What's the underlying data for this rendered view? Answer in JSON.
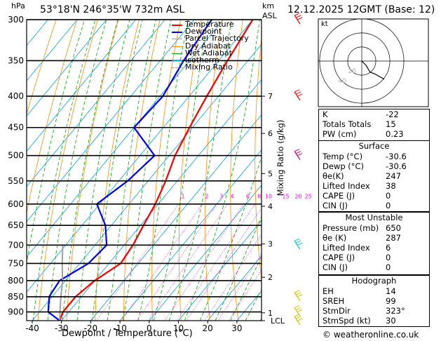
{
  "header": {
    "location": "53°18'N  246°35'W  732m  ASL",
    "datetime": "12.12.2025  12GMT  (Base: 12)",
    "hpa_label": "hPa",
    "km_label": "km",
    "asl_label": "ASL"
  },
  "chart_data": {
    "type": "skewt",
    "xlabel": "Dewpoint / Temperature (°C)",
    "ylabel_right": "Mixing Ratio (g/kg)",
    "x_ticks": [
      -40,
      -30,
      -20,
      -10,
      0,
      10,
      20,
      30
    ],
    "xlim": [
      -40,
      40
    ],
    "pressure_ticks": [
      300,
      350,
      400,
      450,
      500,
      550,
      600,
      650,
      700,
      750,
      800,
      850,
      900
    ],
    "pressure_range": [
      300,
      930
    ],
    "km_ticks": [
      {
        "label": "7",
        "p": 400
      },
      {
        "label": "6",
        "p": 460
      },
      {
        "label": "5",
        "p": 535
      },
      {
        "label": "4",
        "p": 605
      },
      {
        "label": "3",
        "p": 697
      },
      {
        "label": "2",
        "p": 790
      },
      {
        "label": "1",
        "p": 903
      },
      {
        "label": "LCL",
        "p": 930
      }
    ],
    "mixing_ratio_labels": [
      "1",
      "2",
      "3",
      "4",
      "6",
      "8",
      "10",
      "15",
      "20",
      "25"
    ],
    "mixing_ratio_values": [
      1,
      2,
      3,
      4,
      6,
      8,
      10,
      15,
      20,
      25
    ],
    "legend": [
      {
        "name": "Temperature",
        "color": "#ff0000"
      },
      {
        "name": "Dewpoint",
        "color": "#0000ff"
      },
      {
        "name": "Parcel Trajectory",
        "color": "#a0a0a0"
      },
      {
        "name": "Dry Adiabat",
        "color": "#ff8c00"
      },
      {
        "name": "Wet Adiabat",
        "color": "#00aa00"
      },
      {
        "name": "Isotherm",
        "color": "#00a0ff"
      },
      {
        "name": "Mixing Ratio",
        "color": "#ff00ff"
      }
    ],
    "series": [
      {
        "name": "Temperature",
        "points": [
          [
            300,
            -50
          ],
          [
            350,
            -47
          ],
          [
            400,
            -44
          ],
          [
            450,
            -41
          ],
          [
            500,
            -38
          ],
          [
            550,
            -34
          ],
          [
            600,
            -31
          ],
          [
            650,
            -29
          ],
          [
            700,
            -27
          ],
          [
            750,
            -26
          ],
          [
            800,
            -30
          ],
          [
            850,
            -32
          ],
          [
            900,
            -32
          ],
          [
            930,
            -30.6
          ]
        ]
      },
      {
        "name": "Dewpoint",
        "points": [
          [
            300,
            -64
          ],
          [
            350,
            -62
          ],
          [
            400,
            -59
          ],
          [
            450,
            -60
          ],
          [
            500,
            -45
          ],
          [
            550,
            -47
          ],
          [
            600,
            -51
          ],
          [
            650,
            -42
          ],
          [
            700,
            -36
          ],
          [
            750,
            -37
          ],
          [
            800,
            -42
          ],
          [
            850,
            -41
          ],
          [
            900,
            -37
          ],
          [
            930,
            -30.6
          ]
        ]
      },
      {
        "name": "Parcel Trajectory",
        "points": [
          [
            930,
            -30.6
          ],
          [
            900,
            -33
          ],
          [
            850,
            -37
          ],
          [
            800,
            -41
          ],
          [
            750,
            -46
          ],
          [
            700,
            -51
          ]
        ]
      }
    ]
  },
  "hodograph": {
    "unit_label": "kt",
    "ring_labels": [
      "20",
      "40"
    ],
    "points": [
      [
        0,
        0
      ],
      [
        3,
        -3
      ],
      [
        6,
        -8
      ],
      [
        9,
        -9
      ],
      [
        16,
        -13
      ]
    ]
  },
  "winds": [
    {
      "p": 300,
      "color": "#ff0000"
    },
    {
      "p": 400,
      "color": "#ff0000"
    },
    {
      "p": 500,
      "color": "#cc0066"
    },
    {
      "p": 700,
      "color": "#00cccc"
    },
    {
      "p": 850,
      "color": "#cccc00"
    },
    {
      "p": 900,
      "color": "#cccc00"
    },
    {
      "p": 930,
      "color": "#cccc00"
    }
  ],
  "indices": [
    {
      "label": "K",
      "value": "-22"
    },
    {
      "label": "Totals Totals",
      "value": "15"
    },
    {
      "label": "PW (cm)",
      "value": "0.23"
    }
  ],
  "surface": {
    "title": "Surface",
    "rows": [
      {
        "label": "Temp (°C)",
        "value": "-30.6"
      },
      {
        "label": "Dewp (°C)",
        "value": "-30.6"
      },
      {
        "label": "θe(K)",
        "value": "247"
      },
      {
        "label": "Lifted Index",
        "value": "38"
      },
      {
        "label": "CAPE (J)",
        "value": "0"
      },
      {
        "label": "CIN (J)",
        "value": "0"
      }
    ]
  },
  "most_unstable": {
    "title": "Most Unstable",
    "rows": [
      {
        "label": "Pressure (mb)",
        "value": "650"
      },
      {
        "label": "θe (K)",
        "value": "287"
      },
      {
        "label": "Lifted Index",
        "value": "6"
      },
      {
        "label": "CAPE (J)",
        "value": "0"
      },
      {
        "label": "CIN (J)",
        "value": "0"
      }
    ]
  },
  "hodograph_table": {
    "title": "Hodograph",
    "rows": [
      {
        "label": "EH",
        "value": "14"
      },
      {
        "label": "SREH",
        "value": "99"
      },
      {
        "label": "StmDir",
        "value": "323°"
      },
      {
        "label": "StmSpd (kt)",
        "value": "30"
      }
    ]
  },
  "footer": {
    "copyright": "© weatheronline.co.uk"
  },
  "colors": {
    "temperature": "#ff0000",
    "dewpoint": "#0000ff",
    "parcel": "#a0a0a0",
    "dry": "#ff8c00",
    "wet": "#00aa00",
    "isotherm": "#00a0ff",
    "mixing": "#ff00ff"
  }
}
